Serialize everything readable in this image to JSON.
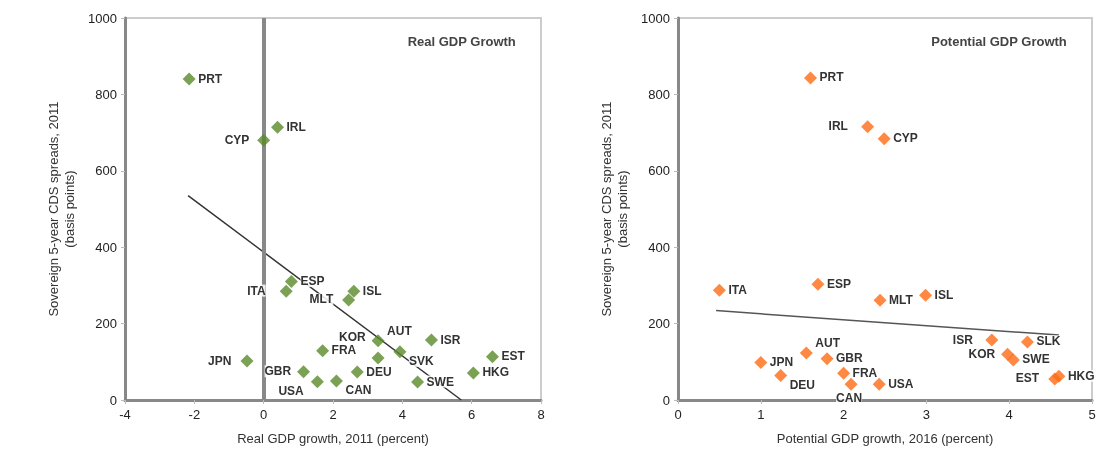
{
  "chart_data": [
    {
      "type": "scatter",
      "title": "Real GDP Growth",
      "xlabel": "Real GDP growth, 2011 (percent)",
      "ylabel": "Sovereign 5-year CDS spreads, 2011\n(basis points)",
      "xlim": [
        -4,
        8
      ],
      "xticks": [
        -4,
        -2,
        0,
        2,
        4,
        6,
        8
      ],
      "ylim": [
        0,
        1000
      ],
      "yticks": [
        0,
        200,
        400,
        600,
        800,
        1000
      ],
      "grid": false,
      "marker": "diamond",
      "series": [
        {
          "type": "scatter",
          "color": "#5a8a2a",
          "x": [
            -2.15,
            0.4,
            0,
            0.65,
            0.8,
            2.6,
            2.45,
            1.7,
            3.3,
            2.7,
            1.55,
            1.15,
            2.1,
            -0.48,
            3.93,
            4.84,
            6.6,
            6.05,
            3.3,
            4.44
          ],
          "values": [
            840,
            714,
            680,
            285,
            310,
            285,
            262,
            129,
            155,
            73,
            48,
            74,
            50,
            102,
            126,
            157,
            113,
            71,
            110,
            47
          ]
        },
        {
          "type": "line",
          "color": "#333333",
          "marker": "none",
          "x": [
            -2.18,
            5.7
          ],
          "values": [
            535,
            0
          ]
        }
      ],
      "ref_lines": [
        {
          "axis": "x",
          "value": 0,
          "color": "#888888"
        }
      ],
      "annotations": [
        {
          "text": "PRT",
          "x": -2.15,
          "y": 840
        },
        {
          "text": "IRL",
          "x": 0.4,
          "y": 714
        },
        {
          "text": "CYP",
          "x": 0,
          "y": 680
        },
        {
          "text": "ITA",
          "x": 0.65,
          "y": 285
        },
        {
          "text": "ESP",
          "x": 0.8,
          "y": 310
        },
        {
          "text": "ISL",
          "x": 2.6,
          "y": 285
        },
        {
          "text": "MLT",
          "x": 2.45,
          "y": 262
        },
        {
          "text": "FRA",
          "x": 1.7,
          "y": 129
        },
        {
          "text": "AUT",
          "x": 3.3,
          "y": 155
        },
        {
          "text": "DEU",
          "x": 2.7,
          "y": 73
        },
        {
          "text": "USA",
          "x": 1.55,
          "y": 48
        },
        {
          "text": "GBR",
          "x": 1.15,
          "y": 74
        },
        {
          "text": "CAN",
          "x": 2.1,
          "y": 50
        },
        {
          "text": "JPN",
          "x": -0.48,
          "y": 102
        },
        {
          "text": "SVK",
          "x": 3.93,
          "y": 126
        },
        {
          "text": "ISR",
          "x": 4.84,
          "y": 157
        },
        {
          "text": "EST",
          "x": 6.6,
          "y": 113
        },
        {
          "text": "HKG",
          "x": 6.05,
          "y": 71
        },
        {
          "text": "KOR",
          "x": 3.3,
          "y": 110
        },
        {
          "text": "SWE",
          "x": 4.44,
          "y": 47
        }
      ]
    },
    {
      "type": "scatter",
      "title": "Potential GDP Growth",
      "xlabel": "Potential GDP growth, 2016 (percent)",
      "ylabel": "Sovereign 5-year CDS spreads, 2011\n(basis points)",
      "xlim": [
        0,
        5
      ],
      "xticks": [
        0,
        1,
        2,
        3,
        4,
        5
      ],
      "ylim": [
        0,
        1000
      ],
      "yticks": [
        0,
        200,
        400,
        600,
        800,
        1000
      ],
      "grid": false,
      "marker": "diamond",
      "series": [
        {
          "type": "scatter",
          "color": "#ff6a13",
          "x": [
            1.6,
            2.29,
            2.49,
            0.5,
            1.69,
            2.44,
            2.99,
            3.79,
            3.98,
            4.05,
            4.22,
            4.55,
            4.6,
            1.0,
            1.24,
            1.55,
            1.8,
            2.0,
            2.09,
            2.43
          ],
          "values": [
            843,
            715,
            684,
            287,
            303,
            261,
            274,
            157,
            120,
            105,
            152,
            55,
            62,
            98,
            64,
            123,
            108,
            70,
            41,
            41
          ]
        },
        {
          "type": "line",
          "color": "#555555",
          "marker": "none",
          "x": [
            0.46,
            4.6
          ],
          "values": [
            234,
            170
          ]
        }
      ],
      "annotations": [
        {
          "text": "PRT",
          "x": 1.6,
          "y": 843
        },
        {
          "text": "IRL",
          "x": 2.29,
          "y": 715
        },
        {
          "text": "CYP",
          "x": 2.49,
          "y": 684
        },
        {
          "text": "ITA",
          "x": 0.5,
          "y": 287
        },
        {
          "text": "ESP",
          "x": 1.69,
          "y": 303
        },
        {
          "text": "MLT",
          "x": 2.44,
          "y": 261
        },
        {
          "text": "ISL",
          "x": 2.99,
          "y": 274
        },
        {
          "text": "ISR",
          "x": 3.79,
          "y": 157
        },
        {
          "text": "KOR",
          "x": 3.98,
          "y": 120
        },
        {
          "text": "SWE",
          "x": 4.05,
          "y": 105
        },
        {
          "text": "SLK",
          "x": 4.22,
          "y": 152
        },
        {
          "text": "EST",
          "x": 4.55,
          "y": 55
        },
        {
          "text": "HKG",
          "x": 4.6,
          "y": 62
        },
        {
          "text": "JPN",
          "x": 1.0,
          "y": 98
        },
        {
          "text": "DEU",
          "x": 1.24,
          "y": 64
        },
        {
          "text": "AUT",
          "x": 1.55,
          "y": 123
        },
        {
          "text": "GBR",
          "x": 1.8,
          "y": 108
        },
        {
          "text": "FRA",
          "x": 2.0,
          "y": 70
        },
        {
          "text": "CAN",
          "x": 2.09,
          "y": 41
        },
        {
          "text": "USA",
          "x": 2.43,
          "y": 41
        }
      ]
    }
  ]
}
